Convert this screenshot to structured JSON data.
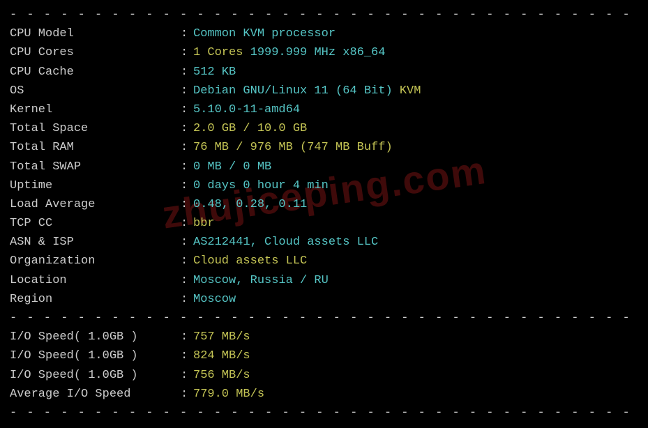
{
  "watermark": "zhujiceping.com",
  "divider": "- - - - - - - - - - - - - - - - - - - - - - - - - - - - - - - - - - - - - - - - - - - - - -",
  "colors": {
    "background": "#000000",
    "label": "#cccccc",
    "cyan": "#55c5c5",
    "yellow": "#c5c555",
    "watermark": "rgba(180,30,30,0.35)"
  },
  "system": {
    "cpu_model": {
      "label": "CPU Model",
      "value": "Common KVM processor"
    },
    "cpu_cores": {
      "label": "CPU Cores",
      "cores": "1 Cores",
      "freq": "1999.999 MHz x86_64"
    },
    "cpu_cache": {
      "label": "CPU Cache",
      "value": "512 KB"
    },
    "os": {
      "label": "OS",
      "name": "Debian GNU/Linux 11 (64 Bit)",
      "virt": "KVM"
    },
    "kernel": {
      "label": "Kernel",
      "value": "5.10.0-11-amd64"
    },
    "total_space": {
      "label": "Total Space",
      "value": "2.0 GB / 10.0 GB"
    },
    "total_ram": {
      "label": "Total RAM",
      "value": "76 MB / 976 MB (747 MB Buff)"
    },
    "total_swap": {
      "label": "Total SWAP",
      "value": "0 MB / 0 MB"
    },
    "uptime": {
      "label": "Uptime",
      "value": "0 days 0 hour 4 min"
    },
    "load_avg": {
      "label": "Load Average",
      "value": "0.48, 0.28, 0.11"
    },
    "tcp_cc": {
      "label": "TCP CC",
      "value": "bbr"
    },
    "asn_isp": {
      "label": "ASN & ISP",
      "value": "AS212441, Cloud assets LLC"
    },
    "organization": {
      "label": "Organization",
      "value": "Cloud assets LLC"
    },
    "location": {
      "label": "Location",
      "value": "Moscow, Russia / RU"
    },
    "region": {
      "label": "Region",
      "value": "Moscow"
    }
  },
  "io": {
    "test1": {
      "label": "I/O Speed( 1.0GB )",
      "value": "757 MB/s"
    },
    "test2": {
      "label": "I/O Speed( 1.0GB )",
      "value": "824 MB/s"
    },
    "test3": {
      "label": "I/O Speed( 1.0GB )",
      "value": "756 MB/s"
    },
    "average": {
      "label": "Average I/O Speed",
      "value": "779.0 MB/s"
    }
  }
}
